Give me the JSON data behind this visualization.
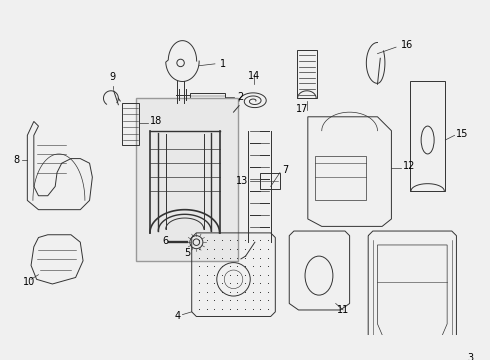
{
  "bg_color": "#f0f0f0",
  "line_color": "#333333",
  "label_color": "#000000",
  "fig_width": 4.9,
  "fig_height": 3.6,
  "dpi": 100
}
